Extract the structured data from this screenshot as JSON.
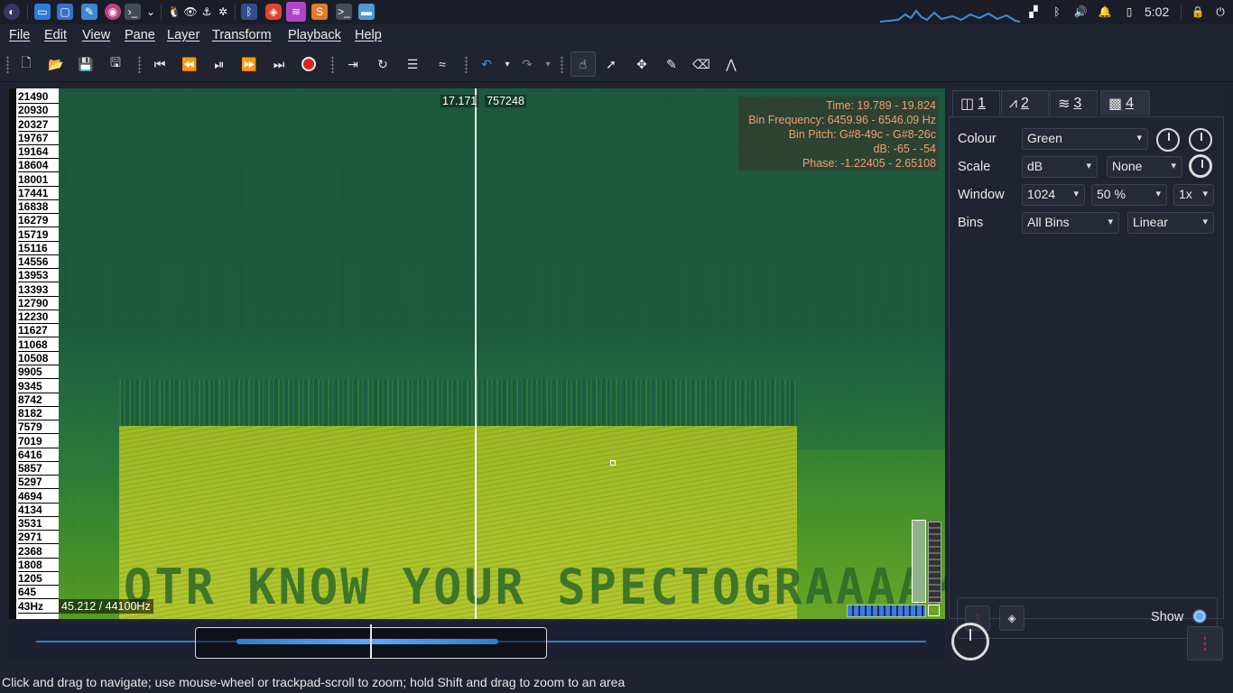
{
  "taskbar": {
    "clock": "5:02",
    "icons": [
      "app-launcher-icon",
      "terminal-icon",
      "files-icon",
      "editor-icon",
      "record-icon",
      "console-icon",
      "arrow-icon",
      "linux-icon",
      "eye-icon",
      "anchor-icon",
      "debug-icon",
      "bluetooth-icon",
      "brave-icon",
      "audio-app-icon",
      "sublime-icon",
      "terminal2-icon",
      "folder-icon"
    ]
  },
  "menu": {
    "items": [
      "File",
      "Edit",
      "View",
      "Pane",
      "Layer",
      "Transform",
      "Playback",
      "Help"
    ]
  },
  "toolbar": {
    "icons": [
      "new-icon",
      "open-icon",
      "save-icon",
      "save-as-icon",
      "rewind-start-icon",
      "rewind-icon",
      "play-pause-icon",
      "fast-forward-icon",
      "fast-forward-end-icon",
      "record-icon",
      "constrain-icon",
      "loop-icon",
      "solo-icon",
      "selection-scale-icon",
      "undo-icon",
      "redo-icon",
      "navigate-icon",
      "select-icon",
      "move-icon",
      "draw-icon",
      "erase-icon",
      "measure-icon"
    ]
  },
  "pane": {
    "scale_labels": [
      "21490",
      "20930",
      "20327",
      "19767",
      "19164",
      "18604",
      "18001",
      "17441",
      "16838",
      "16279",
      "15719",
      "15116",
      "14556",
      "13953",
      "13393",
      "12790",
      "12230",
      "11627",
      "11068",
      "10508",
      "9905",
      "9345",
      "8742",
      "8182",
      "7579",
      "7019",
      "6416",
      "5857",
      "5297",
      "4694",
      "4134",
      "3531",
      "2971",
      "2368",
      "1808",
      "1205",
      "645",
      "43Hz"
    ],
    "playhead_time": "17.171",
    "playhead_frame": "757248",
    "info_lines": [
      "Time: 19.789 - 19.824",
      "Bin Frequency: 6459.96 - 6546.09 Hz",
      "Bin Pitch: G#8-49c - G#8-26c",
      "dB: -65 - -54",
      "Phase: -1.22405 - 2.65108"
    ],
    "freq_readout": "45.212 / 44100Hz",
    "hidden_message": "OTR KNOW YOUR SPECTOGRAAAAMS?"
  },
  "panel": {
    "tabs": [
      "1",
      "2",
      "3",
      "4"
    ],
    "tab_icons": [
      "pane-icon",
      "waveform-icon",
      "audio-icon",
      "spectrogram-icon"
    ],
    "colour_label": "Colour",
    "colour_value": "Green",
    "scale_label": "Scale",
    "scale_value": "dB",
    "normalize_value": "None",
    "window_label": "Window",
    "window_value": "1024",
    "overlap_value": "50 %",
    "oversample_value": "1x",
    "bins_label": "Bins",
    "bins_value": "All Bins",
    "bins_scale_value": "Linear",
    "show_label": "Show"
  },
  "status": "Click and drag to navigate; use mouse-wheel or trackpad-scroll to zoom; hold Shift and drag to zoom to an area"
}
